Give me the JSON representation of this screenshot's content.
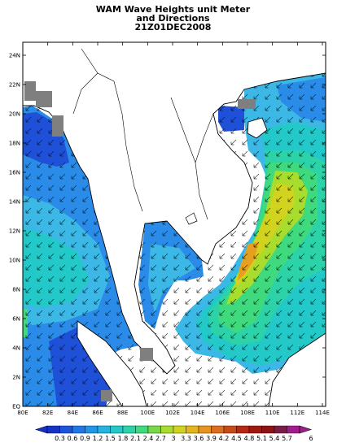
{
  "title": {
    "line1": "WAM Wave Heights unit Meter",
    "line2": "and Directions",
    "line3": "21Z01DEC2008"
  },
  "axes": {
    "y_labels": [
      "24N",
      "22N",
      "20N",
      "18N",
      "16N",
      "14N",
      "12N",
      "10N",
      "8N",
      "6N",
      "4N",
      "2N",
      "EQ"
    ],
    "x_labels": [
      "80E",
      "82E",
      "84E",
      "86E",
      "88E",
      "100E",
      "102E",
      "104E",
      "106E",
      "108E",
      "110E",
      "112E",
      "114E"
    ]
  },
  "colorbar": {
    "labels": [
      "0.3",
      "0.6",
      "0.9",
      "1.2",
      "1.5",
      "1.8",
      "2.1",
      "2.4",
      "2.7",
      "3",
      "3.3",
      "3.6",
      "3.9",
      "4.2",
      "4.5",
      "4.8",
      "5.1",
      "5.4",
      "5.7",
      "6"
    ],
    "colors": [
      "#1432c8",
      "#1a55dc",
      "#1f78e6",
      "#2196e8",
      "#25b4e0",
      "#23c8c8",
      "#2cd2a8",
      "#3fd97e",
      "#78d84a",
      "#a8dc2d",
      "#d2d31f",
      "#e6b41e",
      "#e69520",
      "#dc6e1e",
      "#c84a19",
      "#b42814",
      "#a0190f",
      "#8c1414",
      "#781e46",
      "#a01e8c"
    ]
  },
  "map_colors": {
    "deep_blue": "#1f50d8",
    "blue": "#2a8ce8",
    "light_blue": "#3cb8e6",
    "cyan": "#23c8c8",
    "teal": "#2cd2a8",
    "green": "#3fd97e",
    "yellow_green": "#a8dc2d",
    "yellow": "#d2d31f",
    "orange": "#e6a020",
    "land_mask": "#7f7f7f"
  }
}
